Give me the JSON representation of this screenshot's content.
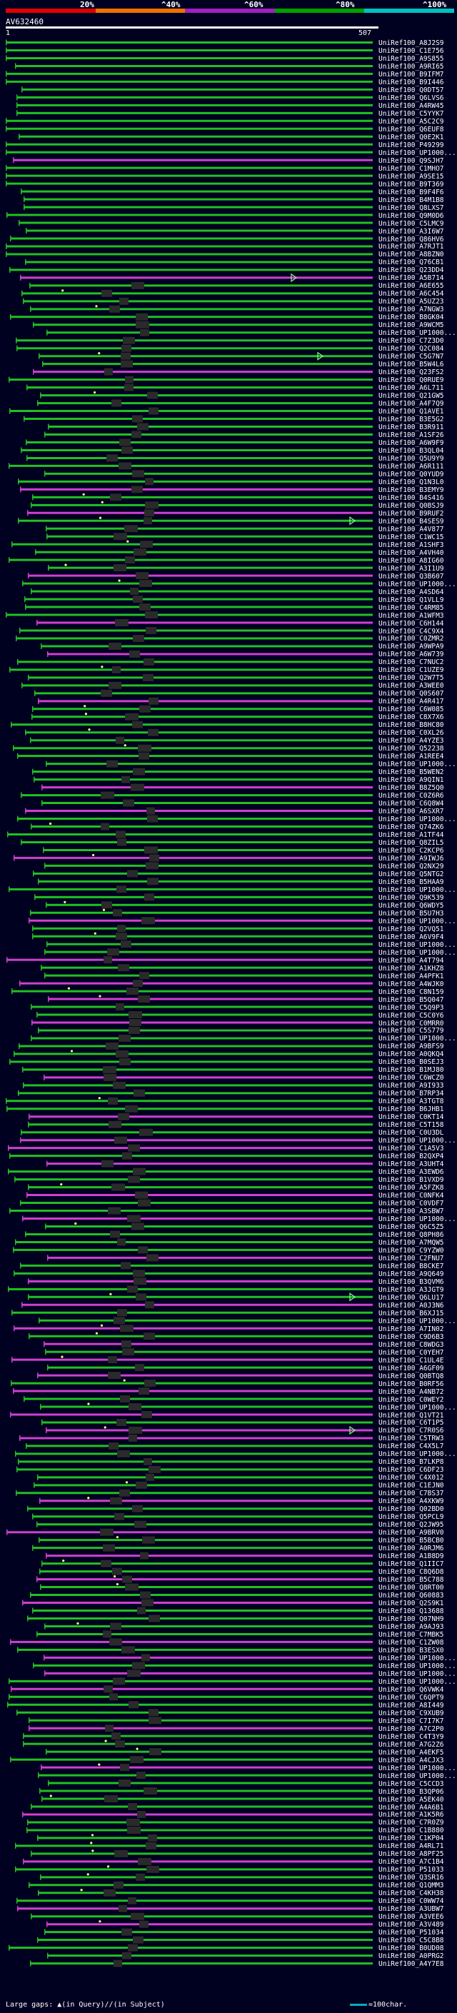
{
  "score_scale": {
    "colors": [
      "#e00000",
      "#f07000",
      "#a020c0",
      "#00a000",
      "#00c0c0"
    ],
    "labels": [
      "20%",
      "^40%",
      "^60%",
      "^80%",
      "^100%"
    ]
  },
  "query": {
    "id": "AV632460",
    "ruler_start": "1",
    "ruler_end": "507"
  },
  "legend": {
    "large_gaps": "Large gaps:",
    "in_query": "(in Query)/",
    "in_subject": "(in Subject)",
    "scale": "=100char."
  },
  "colors": {
    "green": "#22c022",
    "magenta": "#d040d0",
    "gap": "#2a2a2a",
    "arrow": "#80ff80"
  },
  "hits": [
    "UniRef100_A8J2S9",
    "UniRef100_C1E756",
    "UniRef100_A9S855",
    "UniRef100_A9RI65",
    "UniRef100_B9IFM7",
    "UniRef100_B9I446",
    "UniRef100_Q0DT57",
    "UniRef100_Q6LVS6",
    "UniRef100_A4RW45",
    "UniRef100_C5YYK7",
    "UniRef100_A5C2C9",
    "UniRef100_Q6EUF8",
    "UniRef100_Q0E2K1",
    "UniRef100_P49299",
    "UniRef100_UP1000...",
    "UniRef100_Q9SJH7",
    "UniRef100_C1MHO7",
    "UniRef100_A9SE15",
    "UniRef100_B9T369",
    "UniRef100_B9F4F6",
    "UniRef100_B4M1B8",
    "UniRef100_Q8LXS7",
    "UniRef100_Q9M0D6",
    "UniRef100_C5LMC9",
    "UniRef100_A3I6W7",
    "UniRef100_Q86HV6",
    "UniRef100_A7RJT1",
    "UniRef100_A8BZN0",
    "UniRef100_Q76CB1",
    "UniRef100_Q23DD4",
    "UniRef100_A5B714",
    "UniRef100_A6E655",
    "UniRef100_A6C454",
    "UniRef100_A5UZ23",
    "UniRef100_A7NGW3",
    "UniRef100_B8GK04",
    "UniRef100_A9WCM5",
    "UniRef100_UP1000...",
    "UniRef100_C7Z3D0",
    "UniRef100_Q2C084",
    "UniRef100_C5G7N7",
    "UniRef100_B5W4L6",
    "UniRef100_Q23FS2",
    "UniRef100_Q0RUE9",
    "UniRef100_A6L711",
    "UniRef100_Q21GW5",
    "UniRef100_A4F7Q9",
    "UniRef100_Q1AVE1",
    "UniRef100_B3E5G2",
    "UniRef100_B3R911",
    "UniRef100_A1SF26",
    "UniRef100_A6W9F9",
    "UniRef100_B3QL04",
    "UniRef100_Q5U9Y9",
    "UniRef100_A6R111",
    "UniRef100_Q0YUD9",
    "UniRef100_Q1N3L0",
    "UniRef100_B3EMY9",
    "UniRef100_B4S416",
    "UniRef100_Q0BSJ9",
    "UniRef100_B9RUF2",
    "UniRef100_B4SES9",
    "UniRef100_A4V877",
    "UniRef100_C1WC15",
    "UniRef100_A1SHF3",
    "UniRef100_A4VH40",
    "UniRef100_A8IG60",
    "UniRef100_A3I1U9",
    "UniRef100_Q3B607",
    "UniRef100_UP1000...",
    "UniRef100_A4SD64",
    "UniRef100_Q1VLL9",
    "UniRef100_C4RM85",
    "UniRef100_A1WFM3",
    "UniRef100_C6H144",
    "UniRef100_C4C9X4",
    "UniRef100_C0ZMR2",
    "UniRef100_A9WPA9",
    "UniRef100_A6W739",
    "UniRef100_C7NUC2",
    "UniRef100_C1UZE9",
    "UniRef100_Q2W7T5",
    "UniRef100_A3WEE0",
    "UniRef100_Q0S607",
    "UniRef100_A4R417",
    "UniRef100_C6W085",
    "UniRef100_C8X7X6",
    "UniRef100_B8HC80",
    "UniRef100_C0XL26",
    "UniRef100_A4YZE3",
    "UniRef100_Q52238",
    "UniRef100_A1REE4",
    "UniRef100_UP1000...",
    "UniRef100_B5WEN2",
    "UniRef100_A9QIN1",
    "UniRef100_B8Z5Q0",
    "UniRef100_C0Z6R6",
    "UniRef100_C6Q8W4",
    "UniRef100_A6SXR7",
    "UniRef100_UP1000...",
    "UniRef100_Q74ZK6",
    "UniRef100_A1TF44",
    "UniRef100_Q8ZIL5",
    "UniRef100_C2KCP6",
    "UniRef100_A9IWJ6",
    "UniRef100_Q2NX29",
    "UniRef100_Q5NTG2",
    "UniRef100_B5HAA9",
    "UniRef100_UP1000...",
    "UniRef100_Q9K539",
    "UniRef100_Q6WDY5",
    "UniRef100_B5U7H3",
    "UniRef100_UP1000...",
    "UniRef100_Q2VQ51",
    "UniRef100_A6V9F4",
    "UniRef100_UP1000...",
    "UniRef100_UP1000...",
    "UniRef100_A4T794",
    "UniRef100_A1KHZ8",
    "UniRef100_A4PFK1",
    "UniRef100_A4WJK0",
    "UniRef100_C8N159",
    "UniRef100_B5Q047",
    "UniRef100_C5Q9P3",
    "UniRef100_C5C0Y6",
    "UniRef100_C0MRR0",
    "UniRef100_C5S779",
    "UniRef100_UP1000...",
    "UniRef100_A9BFS9",
    "UniRef100_A0QKQ4",
    "UniRef100_B0SEJ3",
    "UniRef100_B1MJ80",
    "UniRef100_C6WCZ0",
    "UniRef100_A9I933",
    "UniRef100_B7RP34",
    "UniRef100_A3TGT8",
    "UniRef100_B6JHB1",
    "UniRef100_C0KT14",
    "UniRef100_C5T158",
    "UniRef100_C0U3DL",
    "UniRef100_UP1000...",
    "UniRef100_C1A5V3",
    "UniRef100_B2QXP4",
    "UniRef100_A3UHT4",
    "UniRef100_A3EWD6",
    "UniRef100_B1VXD9",
    "UniRef100_A5FZK8",
    "UniRef100_C0NFK4",
    "UniRef100_C0VDF7",
    "UniRef100_A3SBW7",
    "UniRef100_UP1000...",
    "UniRef100_Q6C5Z5",
    "UniRef100_Q8PH86",
    "UniRef100_A7MQW5",
    "UniRef100_C9YZW0",
    "UniRef100_C2FNU7",
    "UniRef100_B8CKE7",
    "UniRef100_A9Q649",
    "UniRef100_B3QVM6",
    "UniRef100_A3JGT9",
    "UniRef100_Q6LU17",
    "UniRef100_A0J3N6",
    "UniRef100_B6XJ15",
    "UniRef100_UP1000...",
    "UniRef100_A7IN02",
    "UniRef100_C9D6B3",
    "UniRef100_C8WDG3",
    "UniRef100_C0YEH7",
    "UniRef100_C1UL4E",
    "UniRef100_A6GF09",
    "UniRef100_Q0BTQ8",
    "UniRef100_B0RF56",
    "UniRef100_A4NB72",
    "UniRef100_C0WEY2",
    "UniRef100_UP1000...",
    "UniRef100_Q1VT21",
    "UniRef100_C6T1P5",
    "UniRef100_C7R0S6",
    "UniRef100_C5TRW3",
    "UniRef100_C4X5L7",
    "UniRef100_UP1000...",
    "UniRef100_B7LKP8",
    "UniRef100_C6DF23",
    "UniRef100_C4X012",
    "UniRef100_C1EJN0",
    "UniRef100_C7BS37",
    "UniRef100_A4XKW9",
    "UniRef100_Q02BD0",
    "UniRef100_Q5PCL9",
    "UniRef100_Q2JW95",
    "UniRef100_A9BRV0",
    "UniRef100_B5BCB0",
    "UniRef100_A0RJM6",
    "UniRef100_A1B8D9",
    "UniRef100_Q1IIC7",
    "UniRef100_C8Q6D8",
    "UniRef100_B5C788",
    "UniRef100_Q8RT00",
    "UniRef100_Q60883",
    "UniRef100_Q2S9K1",
    "UniRef100_Q13688",
    "UniRef100_Q07NH9",
    "UniRef100_A9AJ93",
    "UniRef100_C7MBK5",
    "UniRef100_C1ZW08",
    "UniRef100_B3ESX0",
    "UniRef100_UP1000...",
    "UniRef100_UP1000...",
    "UniRef100_UP1000...",
    "UniRef100_UP1000...",
    "UniRef100_Q6VWK4",
    "UniRef100_C6QPT9",
    "UniRef100_A8I449",
    "UniRef100_C9XUB9",
    "UniRef100_C7I7K7",
    "UniRef100_A7C2P0",
    "UniRef100_C4T3Y9",
    "UniRef100_A7G2Z6",
    "UniRef100_A4EKF5",
    "UniRef100_A4CJX3",
    "UniRef100_UP1000...",
    "UniRef100_UP1000...",
    "UniRef100_C5CCD3",
    "UniRef100_B3QP06",
    "UniRef100_A5EK40",
    "UniRef100_A4A6B1",
    "UniRef100_A1K5R6",
    "UniRef100_C7R0Z9",
    "UniRef100_C1B880",
    "UniRef100_C1KP04",
    "UniRef100_A4RL71",
    "UniRef100_A8PF25",
    "UniRef100_A7C1B4",
    "UniRef100_P51033",
    "UniRef100_Q3SR16",
    "UniRef100_Q1QMM3",
    "UniRef100_C4KH38",
    "UniRef100_C0WW74",
    "UniRef100_A3UBW7",
    "UniRef100_A3VEE6",
    "UniRef100_A3V489",
    "UniRef100_P51034",
    "UniRef100_C5C8B8",
    "UniRef100_B0UD08",
    "UniRef100_A0PRG2",
    "UniRef100_A4Y7E8"
  ]
}
